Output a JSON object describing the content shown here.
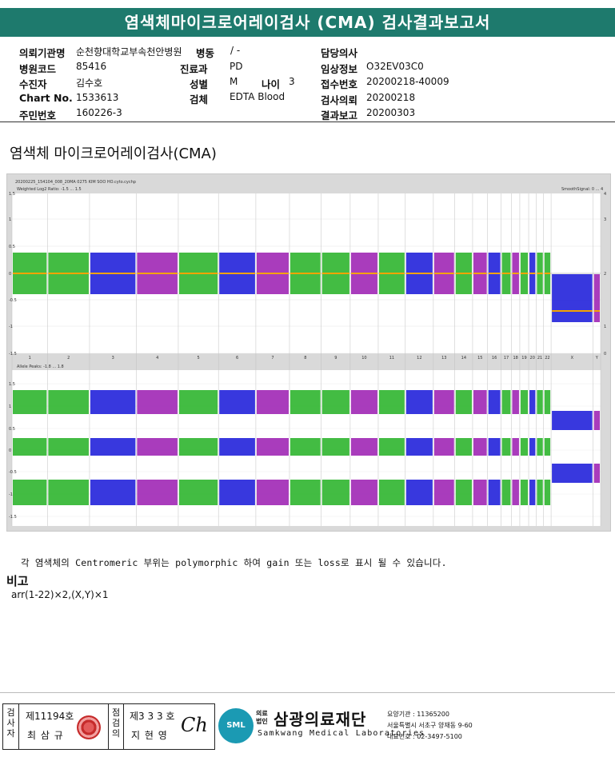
{
  "title": "염색체마이크로어레이검사 (CMA) 검사결과보고서",
  "info": {
    "institution_label": "의뢰기관명",
    "institution_value": "순천향대학교부속천안병원",
    "ward_label": "병동",
    "ward_value": "/ -",
    "doctor_label": "담당의사",
    "doctor_value": "",
    "hospital_code_label": "병원코드",
    "hospital_code_value": "85416",
    "dept_label": "진료과",
    "dept_value": "PD",
    "clinical_label": "임상정보",
    "clinical_value": "O32EV03C0",
    "examinee_label": "수진자",
    "examinee_value": "김수호",
    "sex_label": "성별",
    "sex_value": "M",
    "age_label": "나이",
    "age_value": "3",
    "receipt_label": "접수번호",
    "receipt_value": "20200218-40009",
    "chart_label": "Chart No.",
    "chart_value": "1533613",
    "specimen_label": "검체",
    "specimen_value": "EDTA Blood",
    "request_label": "검사의뢰",
    "request_value": "20200218",
    "rrn_label": "주민번호",
    "rrn_value": "160226-3",
    "report_label": "결과보고",
    "report_value": "20200303"
  },
  "section_title": "염색체 마이크로어레이검사(CMA)",
  "plot": {
    "file_name": "20200225_154104_008_20MA 0275 KIM SOO HO.cyto.cychp",
    "top_title": "Weighted Log2 Ratio: -1.5 ... 1.5",
    "smooth_label": "SmoothSignal: 0 ... 4",
    "bottom_title": "Allele Peaks: -1.8 ... 1.8",
    "chromosomes": [
      "1",
      "2",
      "3",
      "4",
      "5",
      "6",
      "7",
      "8",
      "9",
      "10",
      "11",
      "12",
      "13",
      "14",
      "15",
      "16",
      "17",
      "18",
      "19",
      "20",
      "21",
      "22",
      "X",
      "Y"
    ],
    "colors": {
      "green": "#22b022",
      "blue": "#1515d8",
      "purple": "#9a1ab0",
      "orange": "#f5a300"
    }
  },
  "note": "각 염색체의 Centromeric 부위는 polymorphic 하여 gain 또는 loss로 표시 될 수 있습니다.",
  "remark_title": "비고",
  "remark_text": "arr(1-22)×2,(X,Y)×1",
  "footer": {
    "examiner_label": "검사자",
    "examiner_license": "제11194호",
    "examiner_name": "최 삼 규",
    "checker_label": "점검의",
    "checker_license": "제3 3 3 호",
    "checker_name": "지 현 영",
    "checker_signature": "Ch",
    "logo_sml": "SML",
    "logo_small_1": "의료",
    "logo_small_2": "법인",
    "logo_name": "삼광의료재단",
    "logo_eng": "Samkwang Medical Laboratories",
    "care_code": "요양기관 : 11365200",
    "address": "서울특별시 서초구 양재동 9-60",
    "phone": "대표번호 : 02-3497-5100"
  }
}
